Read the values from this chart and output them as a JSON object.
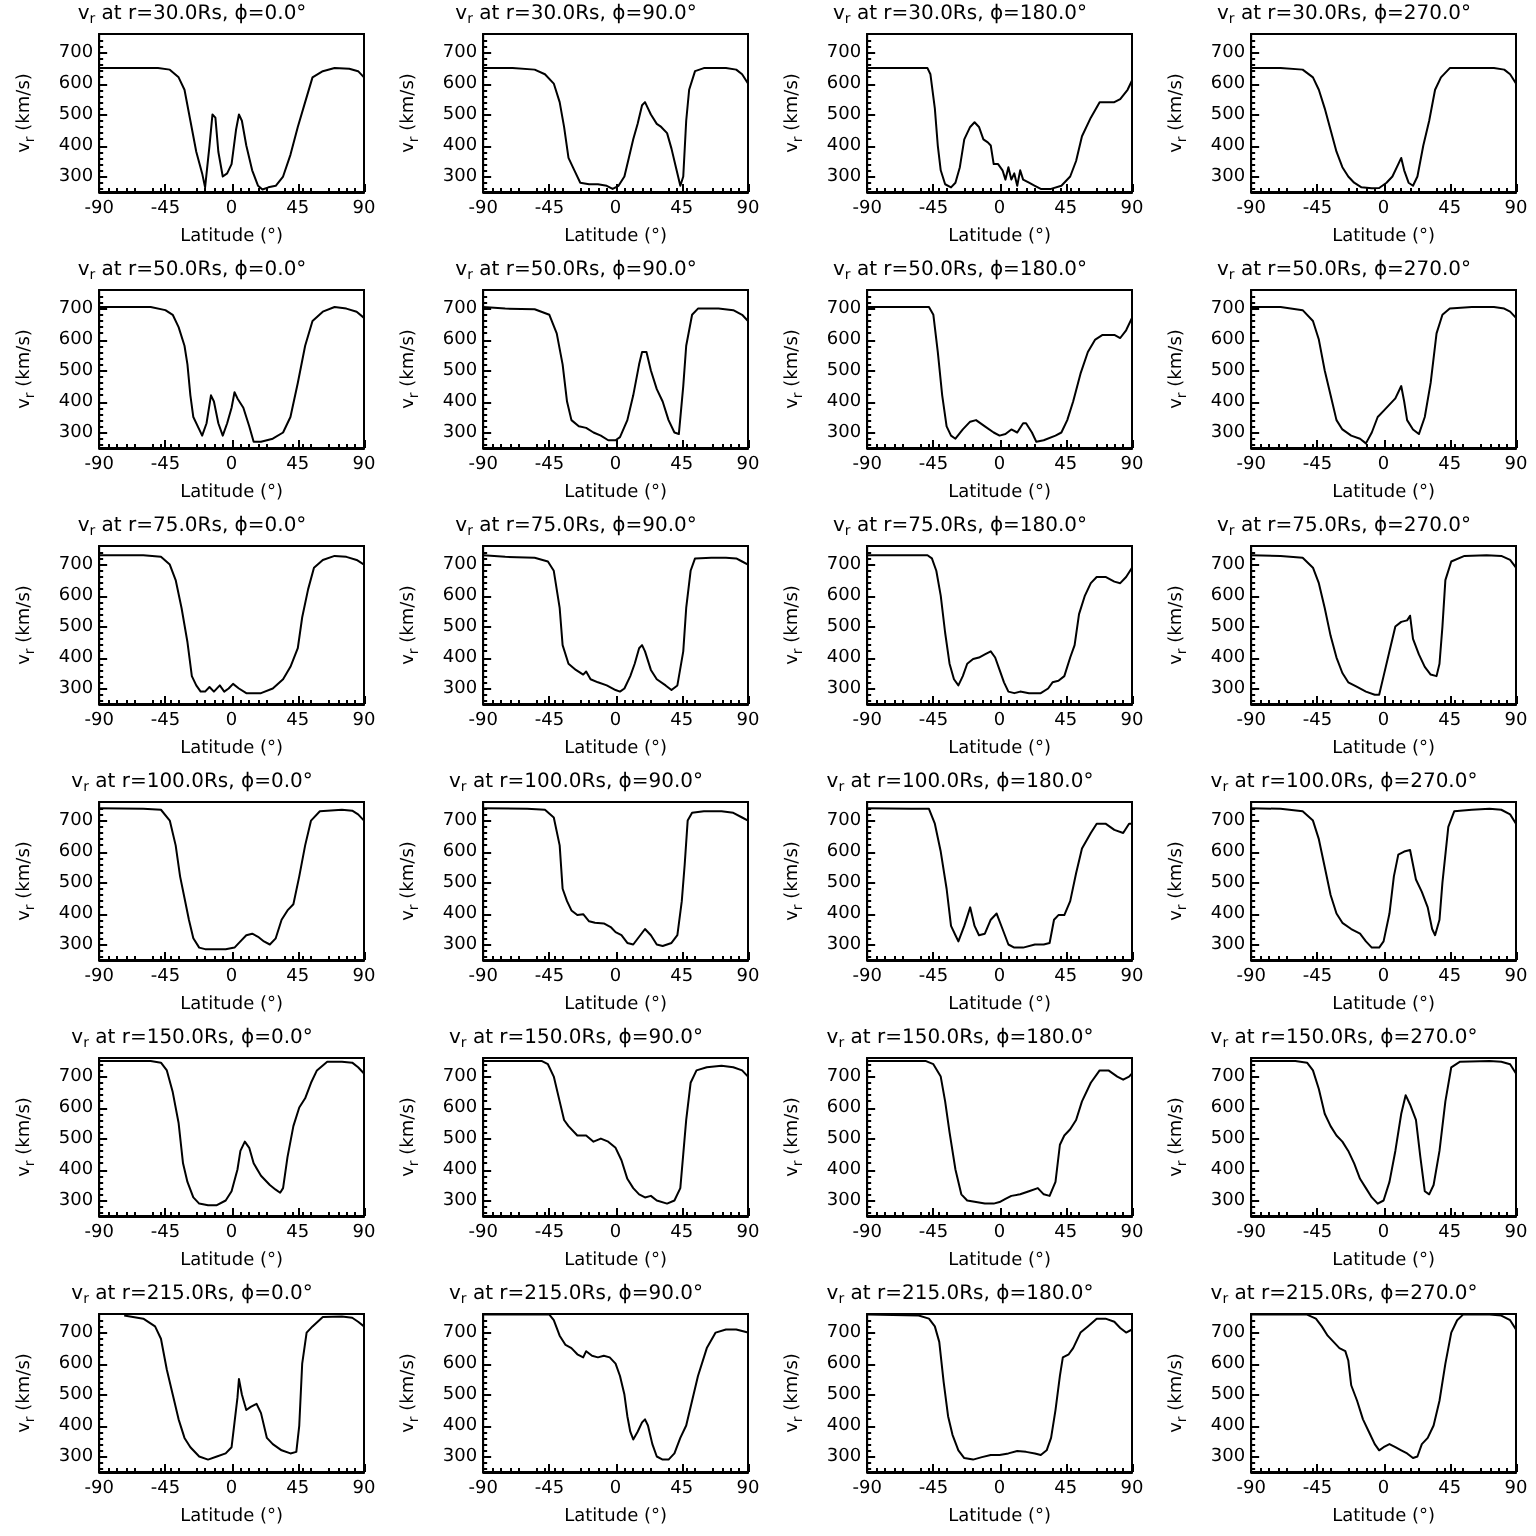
{
  "chart_data": [
    {
      "type": "line",
      "title": "v$_{r}$ at r=30.0Rs, ϕ=0.0°",
      "xlabel": "Latitude (°)",
      "ylabel": "v$_{r}$ (km/s)",
      "xlim": [
        -90,
        90
      ],
      "xticks": [
        -90,
        -45,
        0,
        45,
        90
      ],
      "ylim": [
        250,
        760
      ],
      "yticks": [
        300,
        400,
        500,
        600,
        700
      ],
      "color": "#000000",
      "x": [
        -90,
        -50,
        -42,
        -36,
        -32,
        -28,
        -24,
        -20,
        -18,
        -15,
        -13,
        -11,
        -9,
        -6,
        -3,
        0,
        3,
        5,
        7,
        10,
        14,
        18,
        21,
        25,
        30,
        35,
        40,
        45,
        50,
        55,
        62,
        70,
        80,
        86,
        90
      ],
      "values": [
        650,
        650,
        645,
        620,
        580,
        480,
        380,
        310,
        265,
        400,
        500,
        490,
        380,
        300,
        310,
        340,
        450,
        500,
        480,
        400,
        320,
        270,
        258,
        265,
        270,
        300,
        370,
        460,
        540,
        620,
        640,
        650,
        648,
        640,
        620
      ]
    },
    {
      "type": "line",
      "title": "v$_{r}$ at r=30.0Rs, ϕ=90.0°",
      "xlabel": "Latitude (°)",
      "ylabel": "v$_{r}$ (km/s)",
      "xlim": [
        -90,
        90
      ],
      "xticks": [
        -90,
        -45,
        0,
        45,
        90
      ],
      "ylim": [
        250,
        760
      ],
      "yticks": [
        300,
        400,
        500,
        600,
        700
      ],
      "color": "#000000",
      "x": [
        -90,
        -70,
        -55,
        -48,
        -42,
        -38,
        -35,
        -32,
        -28,
        -24,
        -18,
        -12,
        -6,
        -2,
        2,
        6,
        9,
        12,
        15,
        18,
        20,
        24,
        28,
        31,
        35,
        38,
        41,
        44,
        46,
        48,
        50,
        54,
        60,
        75,
        82,
        86,
        90
      ],
      "values": [
        650,
        650,
        645,
        630,
        600,
        540,
        460,
        360,
        320,
        280,
        275,
        275,
        270,
        260,
        270,
        300,
        360,
        420,
        470,
        530,
        540,
        500,
        470,
        460,
        440,
        390,
        330,
        270,
        300,
        480,
        580,
        640,
        650,
        650,
        645,
        630,
        600
      ]
    },
    {
      "type": "line",
      "title": "v$_{r}$ at r=30.0Rs, ϕ=180.0°",
      "xlabel": "Latitude (°)",
      "ylabel": "v$_{r}$ (km/s)",
      "xlim": [
        -90,
        90
      ],
      "xticks": [
        -90,
        -45,
        0,
        45,
        90
      ],
      "ylim": [
        250,
        760
      ],
      "yticks": [
        300,
        400,
        500,
        600,
        700
      ],
      "color": "#000000",
      "x": [
        -90,
        -49,
        -47,
        -44,
        -42,
        -40,
        -37,
        -33,
        -30,
        -27,
        -24,
        -20,
        -17,
        -14,
        -11,
        -8,
        -6,
        -4,
        -1,
        2,
        4,
        6,
        8,
        10,
        12,
        14,
        16,
        20,
        24,
        28,
        35,
        42,
        48,
        52,
        56,
        62,
        68,
        78,
        82,
        87,
        90
      ],
      "values": [
        650,
        650,
        630,
        520,
        400,
        320,
        275,
        265,
        280,
        330,
        420,
        460,
        475,
        460,
        420,
        410,
        400,
        340,
        340,
        320,
        290,
        330,
        290,
        310,
        270,
        320,
        290,
        280,
        270,
        260,
        260,
        270,
        300,
        350,
        430,
        490,
        540,
        540,
        550,
        580,
        610
      ]
    },
    {
      "type": "line",
      "title": "v$_{r}$ at r=30.0Rs, ϕ=270.0°",
      "xlabel": "Latitude (°)",
      "ylabel": "v$_{r}$ (km/s)",
      "xlim": [
        -90,
        90
      ],
      "xticks": [
        -90,
        -45,
        0,
        45,
        90
      ],
      "ylim": [
        250,
        760
      ],
      "yticks": [
        300,
        400,
        500,
        600,
        700
      ],
      "color": "#000000",
      "x": [
        -90,
        -70,
        -55,
        -48,
        -44,
        -40,
        -36,
        -32,
        -28,
        -24,
        -20,
        -15,
        -8,
        -3,
        2,
        6,
        10,
        12,
        14,
        17,
        20,
        23,
        27,
        31,
        35,
        39,
        45,
        60,
        75,
        82,
        86,
        90
      ],
      "values": [
        650,
        650,
        645,
        620,
        580,
        520,
        450,
        380,
        330,
        300,
        280,
        265,
        262,
        263,
        280,
        300,
        340,
        360,
        320,
        280,
        270,
        300,
        400,
        480,
        580,
        620,
        650,
        650,
        650,
        645,
        630,
        600
      ]
    },
    {
      "type": "line",
      "title": "v$_{r}$ at r=50.0Rs, ϕ=0.0°",
      "xlabel": "Latitude (°)",
      "ylabel": "v$_{r}$ (km/s)",
      "xlim": [
        -90,
        90
      ],
      "xticks": [
        -90,
        -45,
        0,
        45,
        90
      ],
      "ylim": [
        250,
        760
      ],
      "yticks": [
        300,
        400,
        500,
        600,
        700
      ],
      "color": "#000000",
      "x": [
        -90,
        -55,
        -45,
        -40,
        -36,
        -32,
        -30,
        -28,
        -26,
        -22,
        -20,
        -17,
        -14,
        -12,
        -9,
        -6,
        -3,
        0,
        2,
        4,
        8,
        12,
        15,
        20,
        28,
        35,
        40,
        45,
        50,
        55,
        62,
        70,
        78,
        85,
        90
      ],
      "values": [
        705,
        705,
        695,
        680,
        640,
        580,
        520,
        420,
        350,
        310,
        290,
        330,
        420,
        400,
        330,
        290,
        330,
        380,
        430,
        410,
        380,
        320,
        270,
        270,
        280,
        300,
        350,
        460,
        580,
        660,
        690,
        705,
        700,
        690,
        670
      ]
    },
    {
      "type": "line",
      "title": "v$_{r}$ at r=50.0Rs, ϕ=90.0°",
      "xlabel": "Latitude (°)",
      "ylabel": "v$_{r}$ (km/s)",
      "xlim": [
        -90,
        90
      ],
      "xticks": [
        -90,
        -45,
        0,
        45,
        90
      ],
      "ylim": [
        250,
        760
      ],
      "yticks": [
        300,
        400,
        500,
        600,
        700
      ],
      "color": "#000000",
      "x": [
        -90,
        -75,
        -55,
        -45,
        -40,
        -36,
        -33,
        -30,
        -25,
        -20,
        -15,
        -10,
        -5,
        0,
        3,
        8,
        12,
        16,
        18,
        21,
        24,
        28,
        32,
        36,
        40,
        43,
        46,
        48,
        52,
        56,
        70,
        80,
        86,
        90
      ],
      "values": [
        705,
        700,
        698,
        680,
        620,
        520,
        400,
        340,
        320,
        315,
        300,
        290,
        275,
        275,
        285,
        340,
        420,
        520,
        560,
        560,
        500,
        440,
        400,
        340,
        300,
        295,
        450,
        580,
        680,
        700,
        700,
        695,
        680,
        660
      ]
    },
    {
      "type": "line",
      "title": "v$_{r}$ at r=50.0Rs, ϕ=180.0°",
      "xlabel": "Latitude (°)",
      "ylabel": "v$_{r}$ (km/s)",
      "xlim": [
        -90,
        90
      ],
      "xticks": [
        -90,
        -45,
        0,
        45,
        90
      ],
      "ylim": [
        250,
        760
      ],
      "yticks": [
        300,
        400,
        500,
        600,
        700
      ],
      "color": "#000000",
      "x": [
        -90,
        -48,
        -45,
        -42,
        -39,
        -36,
        -33,
        -30,
        -25,
        -20,
        -16,
        -10,
        -4,
        0,
        4,
        8,
        12,
        16,
        18,
        22,
        25,
        30,
        38,
        42,
        46,
        50,
        55,
        60,
        65,
        70,
        78,
        82,
        86,
        90
      ],
      "values": [
        705,
        705,
        680,
        560,
        420,
        320,
        290,
        280,
        310,
        335,
        340,
        320,
        300,
        290,
        295,
        310,
        300,
        330,
        330,
        300,
        270,
        275,
        290,
        300,
        340,
        400,
        490,
        560,
        600,
        615,
        615,
        605,
        630,
        670
      ]
    },
    {
      "type": "line",
      "title": "v$_{r}$ at r=50.0Rs, ϕ=270.0°",
      "xlabel": "Latitude (°)",
      "ylabel": "v$_{r}$ (km/s)",
      "xlim": [
        -90,
        90
      ],
      "xticks": [
        -90,
        -45,
        0,
        45,
        90
      ],
      "ylim": [
        250,
        760
      ],
      "yticks": [
        300,
        400,
        500,
        600,
        700
      ],
      "color": "#000000",
      "x": [
        -90,
        -70,
        -55,
        -48,
        -44,
        -40,
        -36,
        -32,
        -28,
        -22,
        -16,
        -12,
        -8,
        -4,
        0,
        4,
        8,
        12,
        14,
        16,
        20,
        24,
        28,
        32,
        36,
        40,
        45,
        60,
        75,
        82,
        86,
        90
      ],
      "values": [
        705,
        705,
        695,
        660,
        600,
        500,
        420,
        340,
        310,
        290,
        280,
        265,
        300,
        350,
        370,
        390,
        410,
        450,
        400,
        340,
        310,
        295,
        350,
        460,
        620,
        680,
        700,
        705,
        705,
        700,
        690,
        670
      ]
    },
    {
      "type": "line",
      "title": "v$_{r}$ at r=75.0Rs, ϕ=0.0°",
      "xlabel": "Latitude (°)",
      "ylabel": "v$_{r}$ (km/s)",
      "xlim": [
        -90,
        90
      ],
      "xticks": [
        -90,
        -45,
        0,
        45,
        90
      ],
      "ylim": [
        250,
        760
      ],
      "yticks": [
        300,
        400,
        500,
        600,
        700
      ],
      "color": "#000000",
      "x": [
        -90,
        -60,
        -48,
        -42,
        -38,
        -34,
        -30,
        -27,
        -24,
        -21,
        -18,
        -15,
        -12,
        -8,
        -5,
        -2,
        1,
        5,
        10,
        20,
        28,
        35,
        40,
        45,
        48,
        52,
        56,
        62,
        70,
        78,
        85,
        90
      ],
      "values": [
        730,
        730,
        725,
        700,
        650,
        560,
        450,
        340,
        310,
        290,
        290,
        305,
        290,
        310,
        290,
        300,
        315,
        300,
        285,
        285,
        300,
        330,
        370,
        430,
        530,
        620,
        690,
        715,
        728,
        725,
        715,
        700
      ]
    },
    {
      "type": "line",
      "title": "v$_{r}$ at r=75.0Rs, ϕ=90.0°",
      "xlabel": "Latitude (°)",
      "ylabel": "v$_{r}$ (km/s)",
      "xlim": [
        -90,
        90
      ],
      "xticks": [
        -90,
        -45,
        0,
        45,
        90
      ],
      "ylim": [
        250,
        760
      ],
      "yticks": [
        300,
        400,
        500,
        600,
        700
      ],
      "color": "#000000",
      "x": [
        -90,
        -75,
        -55,
        -46,
        -42,
        -38,
        -36,
        -32,
        -27,
        -22,
        -20,
        -17,
        -12,
        -6,
        0,
        3,
        6,
        10,
        13,
        16,
        18,
        20,
        24,
        28,
        34,
        38,
        42,
        46,
        48,
        51,
        54,
        65,
        75,
        82,
        86,
        90
      ],
      "values": [
        730,
        725,
        722,
        710,
        680,
        560,
        440,
        380,
        360,
        345,
        355,
        330,
        320,
        310,
        295,
        290,
        300,
        340,
        380,
        430,
        440,
        420,
        360,
        330,
        310,
        295,
        310,
        420,
        560,
        680,
        720,
        722,
        722,
        720,
        710,
        700
      ]
    },
    {
      "type": "line",
      "title": "v$_{r}$ at r=75.0Rs, ϕ=180.0°",
      "xlabel": "Latitude (°)",
      "ylabel": "v$_{r}$ (km/s)",
      "xlim": [
        -90,
        90
      ],
      "xticks": [
        -90,
        -45,
        0,
        45,
        90
      ],
      "ylim": [
        250,
        760
      ],
      "yticks": [
        300,
        400,
        500,
        600,
        700
      ],
      "color": "#000000",
      "x": [
        -90,
        -49,
        -46,
        -43,
        -40,
        -37,
        -34,
        -31,
        -28,
        -25,
        -22,
        -18,
        -14,
        -10,
        -6,
        -3,
        0,
        3,
        6,
        10,
        14,
        20,
        28,
        33,
        36,
        40,
        44,
        48,
        51,
        54,
        58,
        62,
        66,
        72,
        78,
        82,
        86,
        90
      ],
      "values": [
        730,
        730,
        720,
        680,
        600,
        480,
        380,
        330,
        310,
        340,
        380,
        395,
        400,
        410,
        420,
        400,
        360,
        320,
        290,
        285,
        290,
        285,
        285,
        300,
        320,
        325,
        340,
        400,
        440,
        540,
        600,
        640,
        660,
        660,
        645,
        640,
        660,
        690
      ]
    },
    {
      "type": "line",
      "title": "v$_{r}$ at r=75.0Rs, ϕ=270.0°",
      "xlabel": "Latitude (°)",
      "ylabel": "v$_{r}$ (km/s)",
      "xlim": [
        -90,
        90
      ],
      "xticks": [
        -90,
        -45,
        0,
        45,
        90
      ],
      "ylim": [
        250,
        760
      ],
      "yticks": [
        300,
        400,
        500,
        600,
        700
      ],
      "color": "#000000",
      "x": [
        -90,
        -70,
        -55,
        -48,
        -44,
        -40,
        -36,
        -32,
        -28,
        -24,
        -18,
        -12,
        -6,
        -3,
        0,
        4,
        8,
        12,
        16,
        18,
        20,
        24,
        28,
        32,
        36,
        38,
        40,
        42,
        46,
        55,
        70,
        80,
        86,
        90
      ],
      "values": [
        730,
        728,
        722,
        690,
        640,
        560,
        470,
        400,
        350,
        320,
        305,
        290,
        280,
        280,
        340,
        420,
        500,
        515,
        520,
        535,
        460,
        410,
        370,
        345,
        340,
        380,
        500,
        650,
        710,
        728,
        730,
        728,
        715,
        690
      ]
    },
    {
      "type": "line",
      "title": "v$_{r}$ at r=100.0Rs, ϕ=0.0°",
      "xlabel": "Latitude (°)",
      "ylabel": "v$_{r}$ (km/s)",
      "xlim": [
        -90,
        90
      ],
      "xticks": [
        -90,
        -45,
        0,
        45,
        90
      ],
      "ylim": [
        250,
        760
      ],
      "yticks": [
        300,
        400,
        500,
        600,
        700
      ],
      "color": "#000000",
      "x": [
        -90,
        -60,
        -48,
        -42,
        -38,
        -35,
        -32,
        -29,
        -26,
        -22,
        -18,
        -10,
        -4,
        2,
        6,
        10,
        14,
        18,
        22,
        26,
        30,
        34,
        38,
        42,
        46,
        50,
        54,
        60,
        75,
        82,
        86,
        90
      ],
      "values": [
        740,
        738,
        735,
        700,
        620,
        520,
        450,
        380,
        320,
        290,
        285,
        285,
        285,
        290,
        310,
        330,
        335,
        325,
        310,
        300,
        320,
        380,
        410,
        430,
        520,
        620,
        700,
        730,
        735,
        732,
        720,
        700
      ]
    },
    {
      "type": "line",
      "title": "v$_{r}$ at r=100.0Rs, ϕ=90.0°",
      "xlabel": "Latitude (°)",
      "ylabel": "v$_{r}$ (km/s)",
      "xlim": [
        -90,
        90
      ],
      "xticks": [
        -90,
        -45,
        0,
        45,
        90
      ],
      "ylim": [
        250,
        760
      ],
      "yticks": [
        300,
        400,
        500,
        600,
        700
      ],
      "color": "#000000",
      "x": [
        -90,
        -60,
        -48,
        -42,
        -38,
        -36,
        -33,
        -30,
        -26,
        -22,
        -18,
        -14,
        -8,
        -3,
        0,
        4,
        8,
        12,
        16,
        20,
        24,
        28,
        32,
        38,
        42,
        45,
        47,
        49,
        52,
        60,
        72,
        80,
        86,
        90
      ],
      "values": [
        740,
        738,
        735,
        710,
        620,
        480,
        440,
        410,
        395,
        398,
        375,
        370,
        368,
        355,
        340,
        330,
        305,
        300,
        325,
        350,
        330,
        300,
        295,
        305,
        330,
        440,
        560,
        700,
        725,
        730,
        730,
        725,
        710,
        700
      ]
    },
    {
      "type": "line",
      "title": "v$_{r}$ at r=100.0Rs, ϕ=180.0°",
      "xlabel": "Latitude (°)",
      "ylabel": "v$_{r}$ (km/s)",
      "xlim": [
        -90,
        90
      ],
      "xticks": [
        -90,
        -45,
        0,
        45,
        90
      ],
      "ylim": [
        250,
        760
      ],
      "yticks": [
        300,
        400,
        500,
        600,
        700
      ],
      "color": "#000000",
      "x": [
        -90,
        -60,
        -48,
        -44,
        -40,
        -36,
        -33,
        -30,
        -28,
        -24,
        -20,
        -17,
        -14,
        -10,
        -6,
        -2,
        2,
        6,
        10,
        16,
        24,
        30,
        34,
        37,
        40,
        44,
        48,
        52,
        56,
        62,
        66,
        72,
        78,
        84,
        88,
        90
      ],
      "values": [
        740,
        738,
        738,
        690,
        600,
        480,
        360,
        330,
        310,
        360,
        420,
        360,
        330,
        335,
        380,
        400,
        350,
        300,
        290,
        290,
        300,
        300,
        305,
        380,
        395,
        395,
        440,
        530,
        610,
        660,
        690,
        690,
        670,
        660,
        690,
        690
      ]
    },
    {
      "type": "line",
      "title": "v$_{r}$ at r=100.0Rs, ϕ=270.0°",
      "xlabel": "Latitude (°)",
      "ylabel": "v$_{r}$ (km/s)",
      "xlim": [
        -90,
        90
      ],
      "xticks": [
        -90,
        -45,
        0,
        45,
        90
      ],
      "ylim": [
        250,
        760
      ],
      "yticks": [
        300,
        400,
        500,
        600,
        700
      ],
      "color": "#000000",
      "x": [
        -90,
        -70,
        -55,
        -48,
        -44,
        -40,
        -36,
        -32,
        -28,
        -22,
        -16,
        -12,
        -8,
        -3,
        0,
        4,
        7,
        10,
        14,
        18,
        22,
        26,
        30,
        33,
        35,
        38,
        40,
        44,
        48,
        60,
        72,
        80,
        86,
        90
      ],
      "values": [
        740,
        738,
        730,
        700,
        640,
        550,
        460,
        400,
        370,
        350,
        335,
        310,
        290,
        290,
        310,
        400,
        520,
        590,
        600,
        605,
        510,
        470,
        420,
        350,
        330,
        380,
        500,
        680,
        730,
        735,
        738,
        735,
        720,
        690
      ]
    },
    {
      "type": "line",
      "title": "v$_{r}$ at r=150.0Rs, ϕ=0.0°",
      "xlabel": "Latitude (°)",
      "ylabel": "v$_{r}$ (km/s)",
      "xlim": [
        -90,
        90
      ],
      "xticks": [
        -90,
        -45,
        0,
        45,
        90
      ],
      "ylim": [
        250,
        760
      ],
      "yticks": [
        300,
        400,
        500,
        600,
        700
      ],
      "color": "#000000",
      "x": [
        -90,
        -55,
        -48,
        -44,
        -40,
        -36,
        -33,
        -30,
        -26,
        -22,
        -16,
        -10,
        -4,
        0,
        4,
        6,
        9,
        12,
        15,
        20,
        26,
        30,
        33,
        35,
        38,
        42,
        46,
        50,
        54,
        58,
        65,
        75,
        82,
        86,
        90
      ],
      "values": [
        750,
        750,
        745,
        720,
        650,
        550,
        420,
        360,
        310,
        290,
        285,
        285,
        300,
        330,
        400,
        460,
        490,
        470,
        420,
        380,
        350,
        335,
        325,
        340,
        440,
        540,
        600,
        630,
        680,
        720,
        748,
        748,
        745,
        730,
        710
      ]
    },
    {
      "type": "line",
      "title": "v$_{r}$ at r=150.0Rs, ϕ=90.0°",
      "xlabel": "Latitude (°)",
      "ylabel": "v$_{r}$ (km/s)",
      "xlim": [
        -90,
        90
      ],
      "xticks": [
        -90,
        -45,
        0,
        45,
        90
      ],
      "ylim": [
        250,
        760
      ],
      "yticks": [
        300,
        400,
        500,
        600,
        700
      ],
      "color": "#000000",
      "x": [
        -90,
        -50,
        -46,
        -42,
        -38,
        -35,
        -32,
        -26,
        -20,
        -15,
        -10,
        -5,
        0,
        4,
        8,
        12,
        16,
        20,
        24,
        28,
        35,
        40,
        44,
        46,
        48,
        51,
        55,
        62,
        72,
        80,
        86,
        90
      ],
      "values": [
        750,
        750,
        740,
        700,
        620,
        560,
        540,
        510,
        510,
        490,
        500,
        490,
        470,
        430,
        370,
        340,
        320,
        310,
        315,
        300,
        290,
        300,
        340,
        450,
        560,
        680,
        720,
        730,
        735,
        730,
        720,
        700
      ]
    },
    {
      "type": "line",
      "title": "v$_{r}$ at r=150.0Rs, ϕ=180.0°",
      "xlabel": "Latitude (°)",
      "ylabel": "v$_{r}$ (km/s)",
      "xlim": [
        -90,
        90
      ],
      "xticks": [
        -90,
        -45,
        0,
        45,
        90
      ],
      "ylim": [
        250,
        760
      ],
      "yticks": [
        300,
        400,
        500,
        600,
        700
      ],
      "color": "#000000",
      "x": [
        -90,
        -50,
        -45,
        -40,
        -37,
        -34,
        -30,
        -26,
        -22,
        -16,
        -10,
        -4,
        0,
        4,
        8,
        14,
        20,
        26,
        30,
        34,
        38,
        41,
        44,
        48,
        52,
        56,
        62,
        68,
        74,
        80,
        84,
        88,
        90
      ],
      "values": [
        750,
        750,
        740,
        700,
        620,
        520,
        400,
        320,
        300,
        295,
        290,
        290,
        295,
        305,
        315,
        320,
        330,
        340,
        320,
        315,
        360,
        480,
        510,
        530,
        560,
        620,
        680,
        720,
        720,
        700,
        690,
        700,
        710
      ]
    },
    {
      "type": "line",
      "title": "v$_{r}$ at r=150.0Rs, ϕ=270.0°",
      "xlabel": "Latitude (°)",
      "ylabel": "v$_{r}$ (km/s)",
      "xlim": [
        -90,
        90
      ],
      "xticks": [
        -90,
        -45,
        0,
        45,
        90
      ],
      "ylim": [
        250,
        760
      ],
      "yticks": [
        300,
        400,
        500,
        600,
        700
      ],
      "color": "#000000",
      "x": [
        -90,
        -60,
        -52,
        -48,
        -44,
        -40,
        -36,
        -32,
        -28,
        -24,
        -20,
        -16,
        -12,
        -8,
        -4,
        0,
        4,
        8,
        12,
        15,
        18,
        22,
        25,
        28,
        31,
        34,
        38,
        42,
        46,
        52,
        72,
        80,
        86,
        90
      ],
      "values": [
        750,
        750,
        745,
        720,
        660,
        580,
        540,
        510,
        490,
        460,
        420,
        370,
        340,
        310,
        290,
        300,
        360,
        460,
        580,
        640,
        610,
        560,
        440,
        330,
        320,
        350,
        460,
        620,
        730,
        748,
        750,
        748,
        740,
        710
      ]
    },
    {
      "type": "line",
      "title": "v$_{r}$ at r=215.0Rs, ϕ=0.0°",
      "xlabel": "Latitude (°)",
      "ylabel": "v$_{r}$ (km/s)",
      "xlim": [
        -90,
        90
      ],
      "xticks": [
        -90,
        -45,
        0,
        45,
        90
      ],
      "ylim": [
        250,
        760
      ],
      "yticks": [
        300,
        400,
        500,
        600,
        700
      ],
      "color": "#000000",
      "x": [
        -73,
        -60,
        -52,
        -48,
        -44,
        -40,
        -36,
        -32,
        -28,
        -22,
        -16,
        -10,
        -4,
        0,
        2,
        4,
        5,
        7,
        10,
        13,
        17,
        20,
        24,
        28,
        34,
        40,
        44,
        46,
        48,
        51,
        55,
        62,
        75,
        82,
        86,
        90
      ],
      "values": [
        755,
        745,
        720,
        680,
        580,
        500,
        420,
        360,
        330,
        300,
        290,
        300,
        310,
        330,
        410,
        490,
        550,
        500,
        450,
        460,
        470,
        440,
        360,
        340,
        320,
        310,
        315,
        400,
        600,
        700,
        720,
        750,
        752,
        748,
        735,
        720
      ]
    },
    {
      "type": "line",
      "title": "v$_{r}$ at r=215.0Rs, ϕ=90.0°",
      "xlabel": "Latitude (°)",
      "ylabel": "v$_{r}$ (km/s)",
      "xlim": [
        -90,
        90
      ],
      "xticks": [
        -90,
        -45,
        0,
        45,
        90
      ],
      "ylim": [
        250,
        760
      ],
      "yticks": [
        300,
        400,
        500,
        600,
        700
      ],
      "color": "#000000",
      "x": [
        -90,
        -45,
        -42,
        -38,
        -34,
        -30,
        -26,
        -22,
        -20,
        -16,
        -12,
        -8,
        -4,
        0,
        3,
        6,
        8,
        10,
        12,
        15,
        18,
        20,
        22,
        25,
        28,
        32,
        36,
        40,
        44,
        48,
        52,
        56,
        62,
        68,
        75,
        82,
        86,
        90
      ],
      "values": [
        758,
        758,
        740,
        690,
        660,
        650,
        630,
        620,
        640,
        625,
        620,
        625,
        620,
        600,
        560,
        500,
        430,
        380,
        355,
        380,
        410,
        420,
        400,
        340,
        300,
        290,
        290,
        310,
        360,
        400,
        480,
        560,
        650,
        700,
        710,
        710,
        705,
        700
      ]
    },
    {
      "type": "line",
      "title": "v$_{r}$ at r=215.0Rs, ϕ=180.0°",
      "xlabel": "Latitude (°)",
      "ylabel": "v$_{r}$ (km/s)",
      "xlim": [
        -90,
        90
      ],
      "xticks": [
        -90,
        -45,
        0,
        45,
        90
      ],
      "ylim": [
        250,
        760
      ],
      "yticks": [
        300,
        400,
        500,
        600,
        700
      ],
      "color": "#000000",
      "x": [
        -90,
        -55,
        -48,
        -44,
        -41,
        -38,
        -35,
        -32,
        -28,
        -24,
        -18,
        -12,
        -6,
        0,
        6,
        12,
        18,
        24,
        28,
        32,
        35,
        38,
        41,
        43,
        47,
        50,
        55,
        60,
        66,
        72,
        78,
        82,
        86,
        90
      ],
      "values": [
        758,
        755,
        745,
        720,
        670,
        540,
        430,
        370,
        320,
        295,
        290,
        298,
        305,
        305,
        310,
        318,
        315,
        310,
        305,
        320,
        360,
        450,
        560,
        620,
        630,
        650,
        700,
        720,
        745,
        745,
        735,
        715,
        700,
        710
      ]
    },
    {
      "type": "line",
      "title": "v$_{r}$ at r=215.0Rs, ϕ=270.0°",
      "xlabel": "Latitude (°)",
      "ylabel": "v$_{r}$ (km/s)",
      "xlim": [
        -90,
        90
      ],
      "xticks": [
        -90,
        -45,
        0,
        45,
        90
      ],
      "ylim": [
        250,
        760
      ],
      "yticks": [
        300,
        400,
        500,
        600,
        700
      ],
      "color": "#000000",
      "x": [
        -90,
        -52,
        -46,
        -42,
        -38,
        -34,
        -30,
        -26,
        -24,
        -22,
        -18,
        -14,
        -10,
        -6,
        -3,
        0,
        4,
        8,
        12,
        16,
        20,
        23,
        26,
        30,
        34,
        38,
        42,
        46,
        50,
        54,
        72,
        80,
        86,
        90
      ],
      "values": [
        758,
        758,
        745,
        720,
        690,
        670,
        650,
        640,
        610,
        530,
        480,
        420,
        380,
        340,
        320,
        330,
        340,
        330,
        320,
        310,
        295,
        300,
        340,
        360,
        400,
        480,
        600,
        700,
        740,
        758,
        758,
        755,
        740,
        710
      ]
    }
  ]
}
